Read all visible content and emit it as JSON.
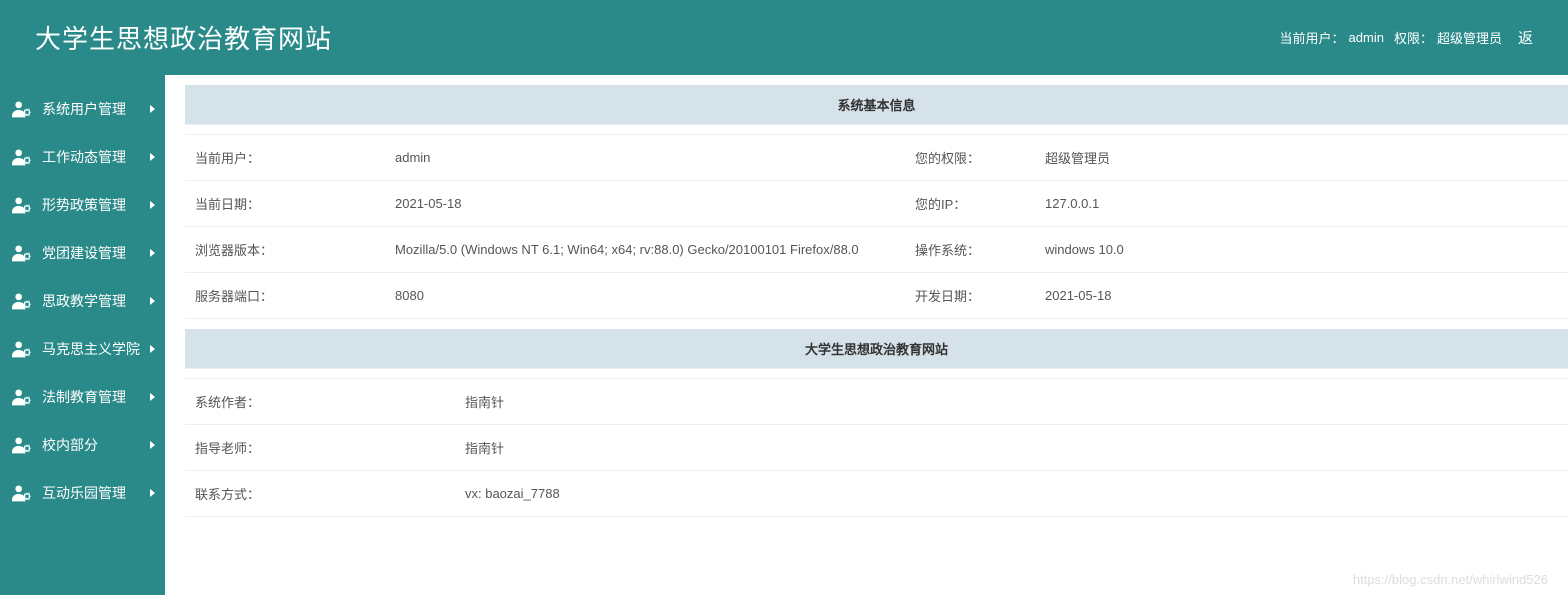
{
  "colors": {
    "primary": "#2a8a8a",
    "header_bg": "#d6e2ea",
    "text": "#333333",
    "text_muted": "#666666",
    "border": "#eeeeee"
  },
  "header": {
    "title": "大学生思想政治教育网站",
    "current_user_label": "当前用户：",
    "current_user": "admin",
    "role_label": "权限：",
    "role": "超级管理员",
    "back": "返"
  },
  "sidebar": {
    "items": [
      {
        "label": "系统用户管理"
      },
      {
        "label": "工作动态管理"
      },
      {
        "label": "形势政策管理"
      },
      {
        "label": "党团建设管理"
      },
      {
        "label": "思政教学管理"
      },
      {
        "label": "马克思主义学院"
      },
      {
        "label": "法制教育管理"
      },
      {
        "label": "校内部分"
      },
      {
        "label": "互动乐园管理"
      }
    ]
  },
  "info": {
    "section1_title": "系统基本信息",
    "rows1": [
      {
        "l1": "当前用户：",
        "v1": "admin",
        "l2": "您的权限：",
        "v2": "超级管理员"
      },
      {
        "l1": "当前日期：",
        "v1": "2021-05-18",
        "l2": "您的IP：",
        "v2": "127.0.0.1"
      },
      {
        "l1": "浏览器版本：",
        "v1": "Mozilla/5.0 (Windows NT 6.1; Win64; x64; rv:88.0) Gecko/20100101 Firefox/88.0",
        "l2": "操作系统：",
        "v2": "windows 10.0"
      },
      {
        "l1": "服务器端口：",
        "v1": "8080",
        "l2": "开发日期：",
        "v2": "2021-05-18"
      }
    ],
    "section2_title": "大学生思想政治教育网站",
    "rows2": [
      {
        "l": "系统作者：",
        "v": "指南针"
      },
      {
        "l": "指导老师：",
        "v": "指南针"
      },
      {
        "l": "联系方式：",
        "v": "vx: baozai_7788"
      }
    ]
  },
  "watermark": "https://blog.csdn.net/whirlwind526"
}
